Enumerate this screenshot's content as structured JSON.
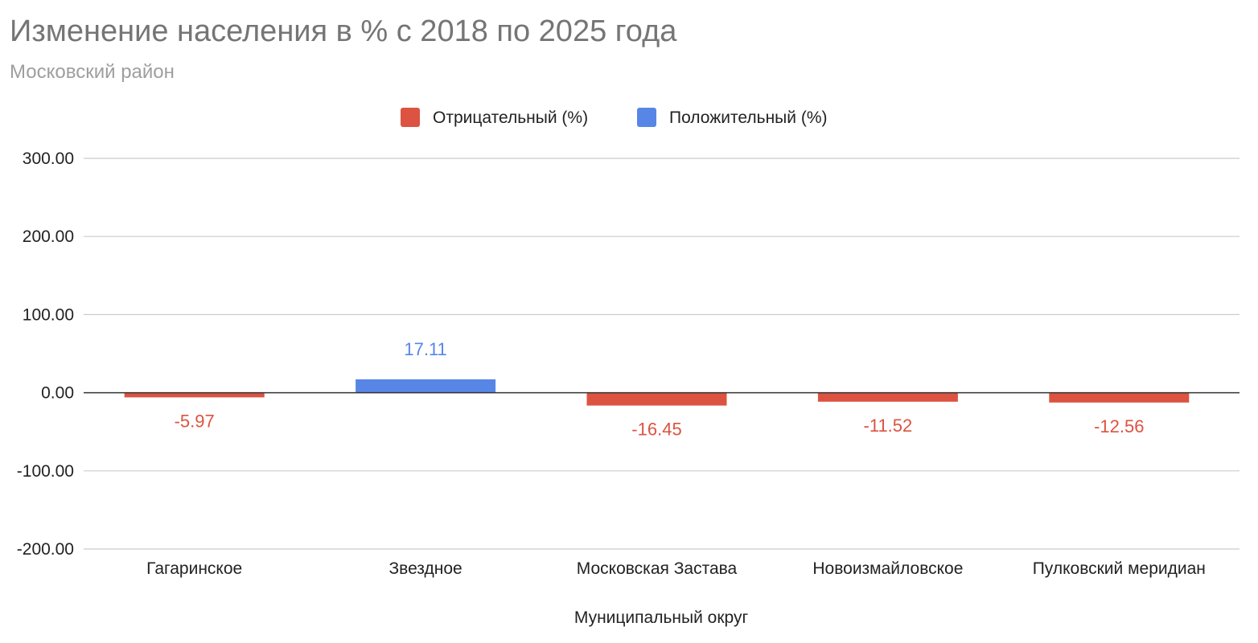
{
  "chart_data": {
    "type": "bar",
    "title": "Изменение населения в % с 2018 по 2025 года",
    "subtitle": "Московский район",
    "xlabel": "Муниципальный округ",
    "ylabel": "",
    "ylim": [
      -200,
      300
    ],
    "yticks": [
      300,
      200,
      100,
      0,
      -100,
      -200
    ],
    "ytick_labels": [
      "300.00",
      "200.00",
      "100.00",
      "0.00",
      "-100.00",
      "-200.00"
    ],
    "grid": true,
    "legend_position": "top",
    "categories": [
      "Гагаринское",
      "Звездное",
      "Московская Застава",
      "Новоизмайловское",
      "Пулковский меридиан"
    ],
    "series": [
      {
        "name": "Отрицательный (%)",
        "color": "#dc5341",
        "values": [
          -5.97,
          null,
          -16.45,
          -11.52,
          -12.56
        ],
        "labels": [
          "-5.97",
          "",
          "-16.45",
          "-11.52",
          "-12.56"
        ]
      },
      {
        "name": "Положительный (%)",
        "color": "#5786e7",
        "values": [
          null,
          17.11,
          null,
          null,
          null
        ],
        "labels": [
          "",
          "17.11",
          "",
          "",
          ""
        ]
      }
    ]
  }
}
